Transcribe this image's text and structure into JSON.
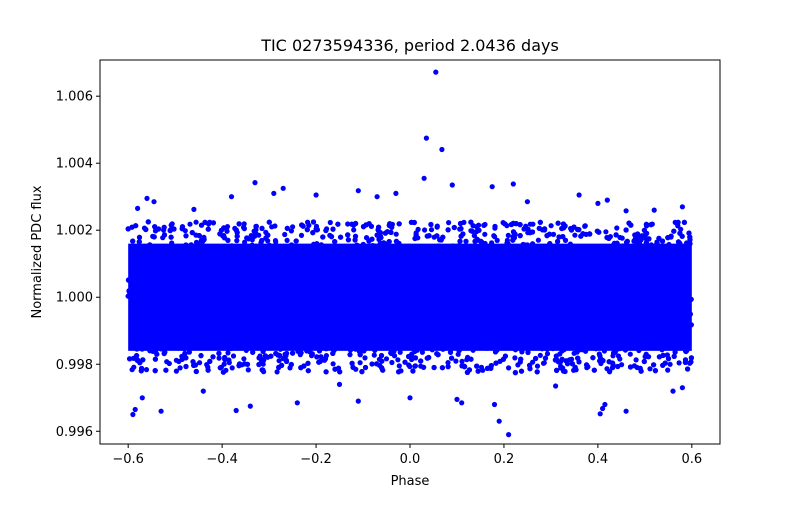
{
  "chart_data": {
    "type": "scatter",
    "title": "TIC 0273594336, period 2.0436 days",
    "xlabel": "Phase",
    "ylabel": "Normalized PDC flux",
    "xlim": [
      -0.66,
      0.66
    ],
    "ylim": [
      0.99562,
      1.00708
    ],
    "xticks": [
      {
        "value": -0.6,
        "label": "−0.6"
      },
      {
        "value": -0.4,
        "label": "−0.4"
      },
      {
        "value": -0.2,
        "label": "−0.2"
      },
      {
        "value": 0.0,
        "label": "0.0"
      },
      {
        "value": 0.2,
        "label": "0.2"
      },
      {
        "value": 0.4,
        "label": "0.4"
      },
      {
        "value": 0.6,
        "label": "0.6"
      }
    ],
    "yticks": [
      {
        "value": 0.996,
        "label": "0.996"
      },
      {
        "value": 0.998,
        "label": "0.998"
      },
      {
        "value": 1.0,
        "label": "1.000"
      },
      {
        "value": 1.002,
        "label": "1.002"
      },
      {
        "value": 1.004,
        "label": "1.004"
      },
      {
        "value": 1.006,
        "label": "1.006"
      }
    ],
    "grid": false,
    "marker_color": "#0000ff",
    "series": [
      {
        "name": "PDC flux",
        "phase_range": [
          -0.6,
          0.6
        ],
        "dense_band": [
          0.9982,
          1.0018
        ],
        "points": [
          {
            "x": 0.055,
            "y": 1.00672
          },
          {
            "x": 0.035,
            "y": 1.00475
          },
          {
            "x": 0.068,
            "y": 1.00441
          },
          {
            "x": 0.03,
            "y": 1.00355
          },
          {
            "x": 0.09,
            "y": 1.00335
          },
          {
            "x": -0.33,
            "y": 1.00342
          },
          {
            "x": 0.22,
            "y": 1.00338
          },
          {
            "x": 0.175,
            "y": 1.0033
          },
          {
            "x": -0.27,
            "y": 1.00325
          },
          {
            "x": -0.11,
            "y": 1.00318
          },
          {
            "x": -0.29,
            "y": 1.0031
          },
          {
            "x": -0.2,
            "y": 1.00305
          },
          {
            "x": -0.07,
            "y": 1.003
          },
          {
            "x": 0.36,
            "y": 1.00305
          },
          {
            "x": -0.38,
            "y": 1.003
          },
          {
            "x": -0.03,
            "y": 1.0031
          },
          {
            "x": -0.56,
            "y": 1.00295
          },
          {
            "x": -0.545,
            "y": 1.00285
          },
          {
            "x": 0.42,
            "y": 1.0029
          },
          {
            "x": 0.4,
            "y": 1.0028
          },
          {
            "x": 0.25,
            "y": 1.00285
          },
          {
            "x": -0.58,
            "y": 1.00265
          },
          {
            "x": 0.58,
            "y": 1.0027
          },
          {
            "x": 0.52,
            "y": 1.0026
          },
          {
            "x": -0.46,
            "y": 1.00262
          },
          {
            "x": 0.46,
            "y": 1.00258
          },
          {
            "x": -0.59,
            "y": 0.9965
          },
          {
            "x": -0.585,
            "y": 0.99665
          },
          {
            "x": -0.53,
            "y": 0.9966
          },
          {
            "x": -0.57,
            "y": 0.997
          },
          {
            "x": -0.37,
            "y": 0.99662
          },
          {
            "x": -0.34,
            "y": 0.99675
          },
          {
            "x": 0.405,
            "y": 0.99652
          },
          {
            "x": 0.41,
            "y": 0.99668
          },
          {
            "x": 0.415,
            "y": 0.9968
          },
          {
            "x": 0.46,
            "y": 0.9966
          },
          {
            "x": 0.19,
            "y": 0.9963
          },
          {
            "x": 0.21,
            "y": 0.9959
          },
          {
            "x": 0.18,
            "y": 0.9968
          },
          {
            "x": 0.11,
            "y": 0.99685
          },
          {
            "x": 0.1,
            "y": 0.99695
          },
          {
            "x": -0.24,
            "y": 0.99685
          },
          {
            "x": -0.11,
            "y": 0.9969
          },
          {
            "x": 0.0,
            "y": 0.997
          },
          {
            "x": 0.56,
            "y": 0.9972
          },
          {
            "x": 0.58,
            "y": 0.9973
          },
          {
            "x": -0.44,
            "y": 0.9972
          },
          {
            "x": -0.15,
            "y": 0.9974
          },
          {
            "x": 0.31,
            "y": 0.99735
          }
        ]
      }
    ]
  }
}
